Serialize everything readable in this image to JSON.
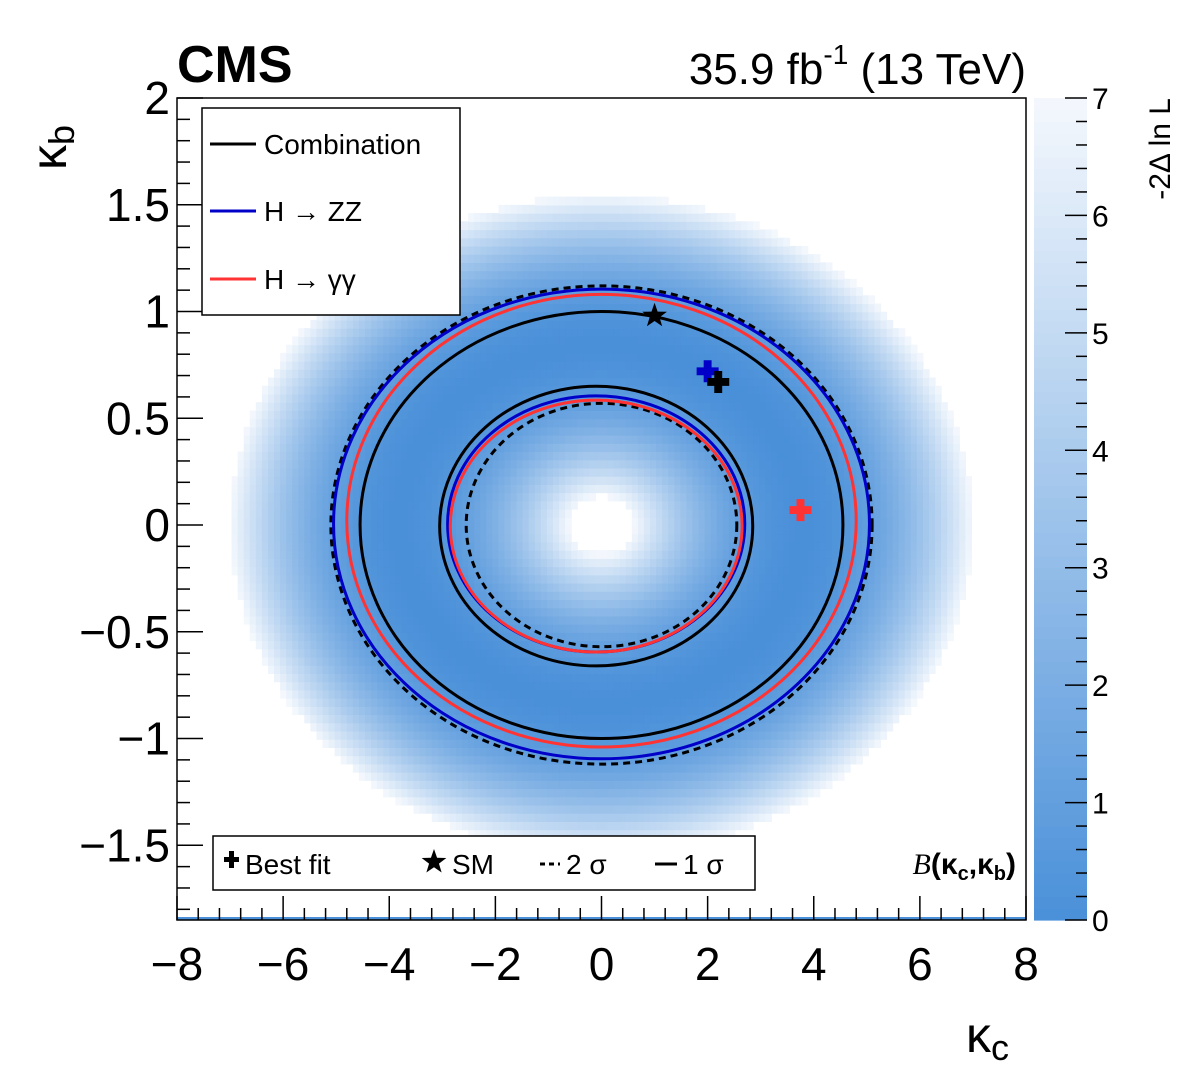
{
  "header": {
    "experiment": "CMS",
    "lumi_value": "35.9 fb",
    "lumi_exp": "-1",
    "energy": " (13 TeV)"
  },
  "chart_data": {
    "type": "heatmap",
    "xlabel_sym": "κ",
    "xlabel_sub": "c",
    "ylabel_sym": "κ",
    "ylabel_sub": "b",
    "xlim": [
      -8,
      8
    ],
    "ylim": [
      -1.85,
      2
    ],
    "xticks": [
      -8,
      -6,
      -4,
      -2,
      0,
      2,
      4,
      6,
      8
    ],
    "yticks": [
      -1.5,
      -1,
      -0.5,
      0,
      0.5,
      1,
      1.5,
      2
    ],
    "zlim": [
      0,
      7
    ],
    "zticks": [
      0,
      1,
      2,
      3,
      4,
      5,
      6,
      7
    ],
    "zlabel": "-2Δ ln L",
    "colors": {
      "low": "#4a90d9",
      "high": "#f4f8fd",
      "combination": "#000000",
      "zz": "#0000c8",
      "gg": "#ff3333"
    },
    "legend_top": [
      {
        "label": "Combination",
        "color": "#000000"
      },
      {
        "label": "H → ZZ",
        "color": "#0000c8"
      },
      {
        "label": "H → γγ",
        "color": "#ff3333"
      }
    ],
    "legend_bottom": {
      "best_fit": "Best fit",
      "sm": "SM",
      "two_sigma": "2 σ",
      "one_sigma": "1 σ"
    },
    "model_label": "B",
    "model_args": "(κ",
    "model_sub1": "c",
    "model_comma": ",κ",
    "model_sub2": "b",
    "model_close": ")",
    "contours": [
      {
        "name": "combination-2sigma-outer",
        "color": "#000000",
        "dash": true,
        "cx": 0,
        "cy": 0,
        "rx": 5.1,
        "ry": 1.12
      },
      {
        "name": "combination-2sigma-inner",
        "color": "#000000",
        "dash": true,
        "cx": 0,
        "cy": 0,
        "rx": 2.55,
        "ry": 0.57
      },
      {
        "name": "zz-outer",
        "color": "#0000c8",
        "dash": false,
        "cx": 0,
        "cy": 0.005,
        "rx": 5.05,
        "ry": 1.1
      },
      {
        "name": "zz-inner",
        "color": "#0000c8",
        "dash": false,
        "cx": -0.1,
        "cy": 0.005,
        "rx": 2.8,
        "ry": 0.6
      },
      {
        "name": "gg-outer",
        "color": "#ff3333",
        "dash": false,
        "cx": 0,
        "cy": 0.02,
        "rx": 4.8,
        "ry": 1.06
      },
      {
        "name": "gg-inner",
        "color": "#ff3333",
        "dash": false,
        "cx": -0.1,
        "cy": -0.005,
        "rx": 2.75,
        "ry": 0.59
      },
      {
        "name": "combination-1sigma-outer",
        "color": "#000000",
        "dash": false,
        "cx": 0,
        "cy": 0,
        "rx": 4.55,
        "ry": 1.0
      },
      {
        "name": "combination-1sigma-inner",
        "color": "#000000",
        "dash": false,
        "cx": -0.1,
        "cy": -0.005,
        "rx": 2.95,
        "ry": 0.655
      }
    ],
    "best_fit_points": [
      {
        "name": "best-fit-zz",
        "x": 2.0,
        "y": 0.72,
        "color": "#0000c8"
      },
      {
        "name": "best-fit-combination",
        "x": 2.2,
        "y": 0.67,
        "color": "#000000"
      },
      {
        "name": "best-fit-gg",
        "x": 3.75,
        "y": 0.07,
        "color": "#ff3333"
      }
    ],
    "sm_point": {
      "x": 1.0,
      "y": 0.98
    },
    "likelihood_valley": {
      "ring_rx": 3.8,
      "ring_ry": 0.84,
      "radial_width": 0.34
    }
  }
}
